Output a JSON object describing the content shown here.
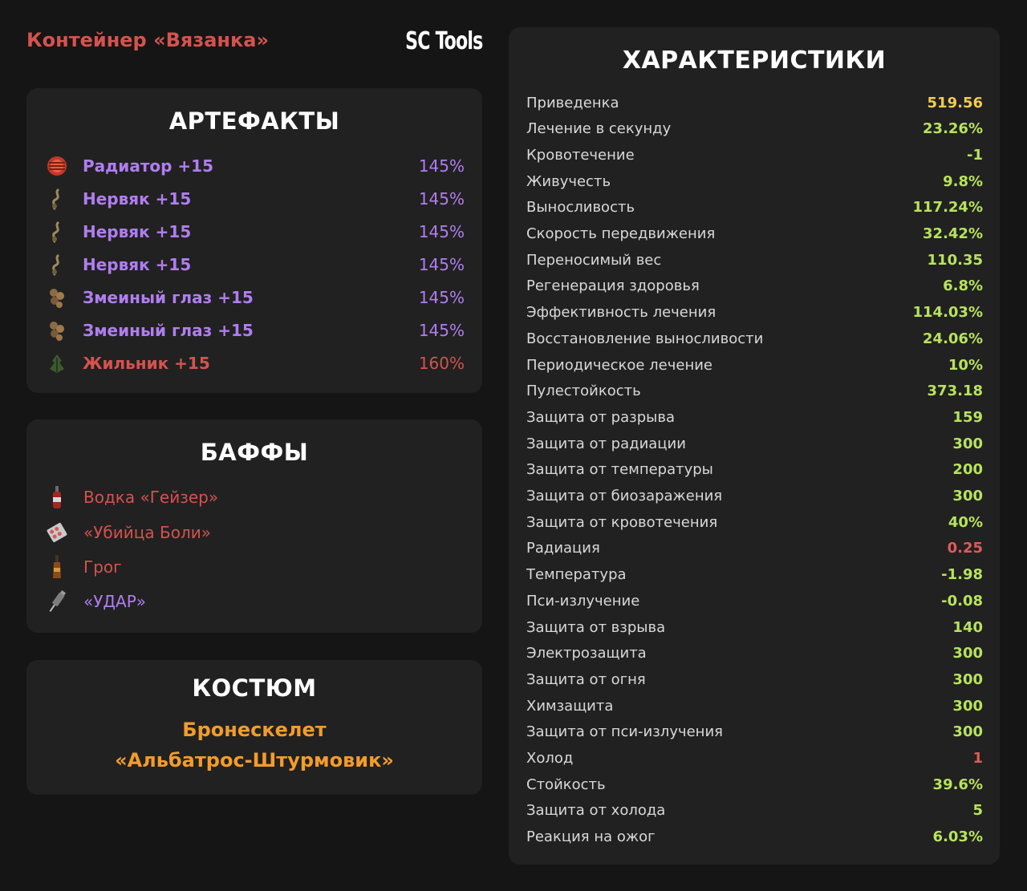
{
  "header": {
    "container": "Контейнер «Вязанка»",
    "brand": "SC Tools"
  },
  "artifacts": {
    "title": "АРТЕФАКТЫ",
    "items": [
      {
        "name": "Радиатор +15",
        "percent": "145%",
        "icon": "radiator-artifact-icon",
        "color": "#b07ef0"
      },
      {
        "name": "Нервяк +15",
        "percent": "145%",
        "icon": "nervyak-artifact-icon",
        "color": "#b07ef0"
      },
      {
        "name": "Нервяк +15",
        "percent": "145%",
        "icon": "nervyak-artifact-icon",
        "color": "#b07ef0"
      },
      {
        "name": "Нервяк +15",
        "percent": "145%",
        "icon": "nervyak-artifact-icon",
        "color": "#b07ef0"
      },
      {
        "name": "Змеиный глаз +15",
        "percent": "145%",
        "icon": "snake-eye-artifact-icon",
        "color": "#b07ef0"
      },
      {
        "name": "Змеиный глаз +15",
        "percent": "145%",
        "icon": "snake-eye-artifact-icon",
        "color": "#b07ef0"
      },
      {
        "name": "Жильник +15",
        "percent": "160%",
        "icon": "zhilnik-artifact-icon",
        "color": "#d4534f"
      }
    ]
  },
  "buffs": {
    "title": "БАФФЫ",
    "items": [
      {
        "name": "Водка «Гейзер»",
        "icon": "vodka-bottle-icon",
        "color": "#d4534f"
      },
      {
        "name": "«Убийца Боли»",
        "icon": "pill-pack-icon",
        "color": "#d4534f"
      },
      {
        "name": "Грог",
        "icon": "grog-bottle-icon",
        "color": "#d4534f"
      },
      {
        "name": "«УДАР»",
        "icon": "syringe-icon",
        "color": "#b07ef0"
      }
    ]
  },
  "suit": {
    "title": "КОСТЮМ",
    "line1": "Бронескелет",
    "line2": "«Альбатрос-Штурмовик»"
  },
  "stats": {
    "title": "ХАРАКТЕРИСТИКИ",
    "rows": [
      {
        "label": "Приведенка",
        "value": "519.56",
        "tone": "gold"
      },
      {
        "label": "Лечение в секунду",
        "value": "23.26%",
        "tone": "pos"
      },
      {
        "label": "Кровотечение",
        "value": "-1",
        "tone": "pos"
      },
      {
        "label": "Живучесть",
        "value": "9.8%",
        "tone": "pos"
      },
      {
        "label": "Выносливость",
        "value": "117.24%",
        "tone": "pos"
      },
      {
        "label": "Скорость передвижения",
        "value": "32.42%",
        "tone": "pos"
      },
      {
        "label": "Переносимый вес",
        "value": "110.35",
        "tone": "pos"
      },
      {
        "label": "Регенерация здоровья",
        "value": "6.8%",
        "tone": "pos"
      },
      {
        "label": "Эффективность лечения",
        "value": "114.03%",
        "tone": "pos"
      },
      {
        "label": "Восстановление выносливости",
        "value": "24.06%",
        "tone": "pos"
      },
      {
        "label": "Периодическое лечение",
        "value": "10%",
        "tone": "pos"
      },
      {
        "label": "Пулестойкость",
        "value": "373.18",
        "tone": "pos"
      },
      {
        "label": "Защита от разрыва",
        "value": "159",
        "tone": "pos"
      },
      {
        "label": "Защита от радиации",
        "value": "300",
        "tone": "pos"
      },
      {
        "label": "Защита от температуры",
        "value": "200",
        "tone": "pos"
      },
      {
        "label": "Защита от биозаражения",
        "value": "300",
        "tone": "pos"
      },
      {
        "label": "Защита от кровотечения",
        "value": "40%",
        "tone": "pos"
      },
      {
        "label": "Радиация",
        "value": "0.25",
        "tone": "neg"
      },
      {
        "label": "Температура",
        "value": "-1.98",
        "tone": "pos"
      },
      {
        "label": "Пси-излучение",
        "value": "-0.08",
        "tone": "pos"
      },
      {
        "label": "Защита от взрыва",
        "value": "140",
        "tone": "pos"
      },
      {
        "label": "Электрозащита",
        "value": "300",
        "tone": "pos"
      },
      {
        "label": "Защита от огня",
        "value": "300",
        "tone": "pos"
      },
      {
        "label": "Химзащита",
        "value": "300",
        "tone": "pos"
      },
      {
        "label": "Защита от пси-излучения",
        "value": "300",
        "tone": "pos"
      },
      {
        "label": "Холод",
        "value": "1",
        "tone": "neg"
      },
      {
        "label": "Стойкость",
        "value": "39.6%",
        "tone": "pos"
      },
      {
        "label": "Защита от холода",
        "value": "5",
        "tone": "pos"
      },
      {
        "label": "Реакция на ожог",
        "value": "6.03%",
        "tone": "pos"
      }
    ]
  }
}
